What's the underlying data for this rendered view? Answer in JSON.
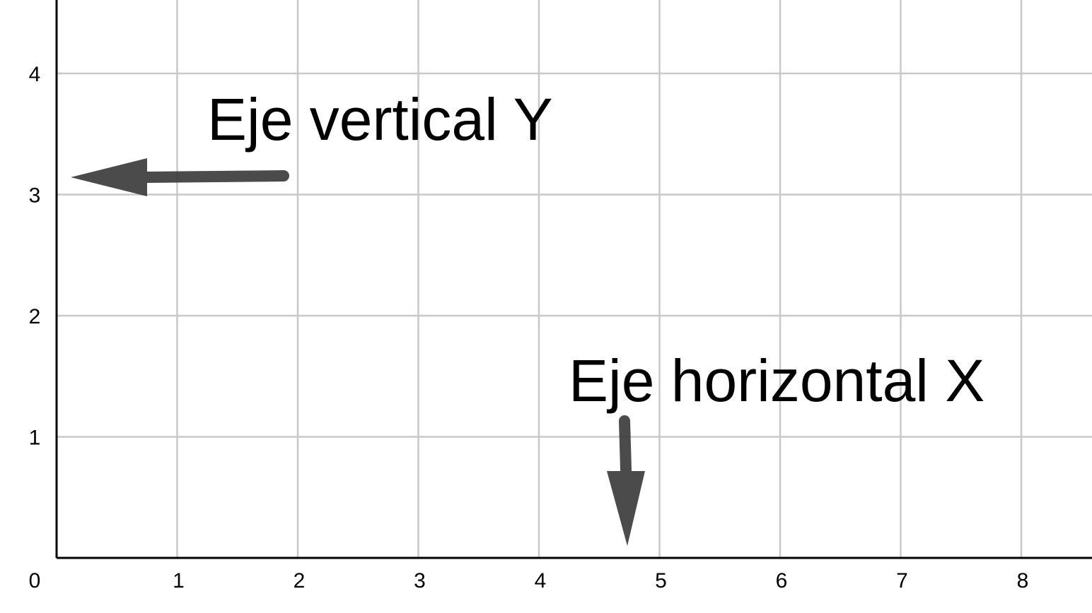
{
  "chart_data": {
    "type": "scatter",
    "x_ticks": [
      "0",
      "1",
      "2",
      "3",
      "4",
      "5",
      "6",
      "7",
      "8"
    ],
    "y_ticks": [
      "0",
      "1",
      "2",
      "3",
      "4"
    ],
    "grid": true,
    "annotations": [
      {
        "text": "Eje vertical Y",
        "arrow_direction": "left"
      },
      {
        "text": "Eje horizontal X",
        "arrow_direction": "down"
      }
    ]
  },
  "colors": {
    "grid": "#c8c8c8",
    "axis": "#000000",
    "arrow": "#3c3c3c"
  }
}
